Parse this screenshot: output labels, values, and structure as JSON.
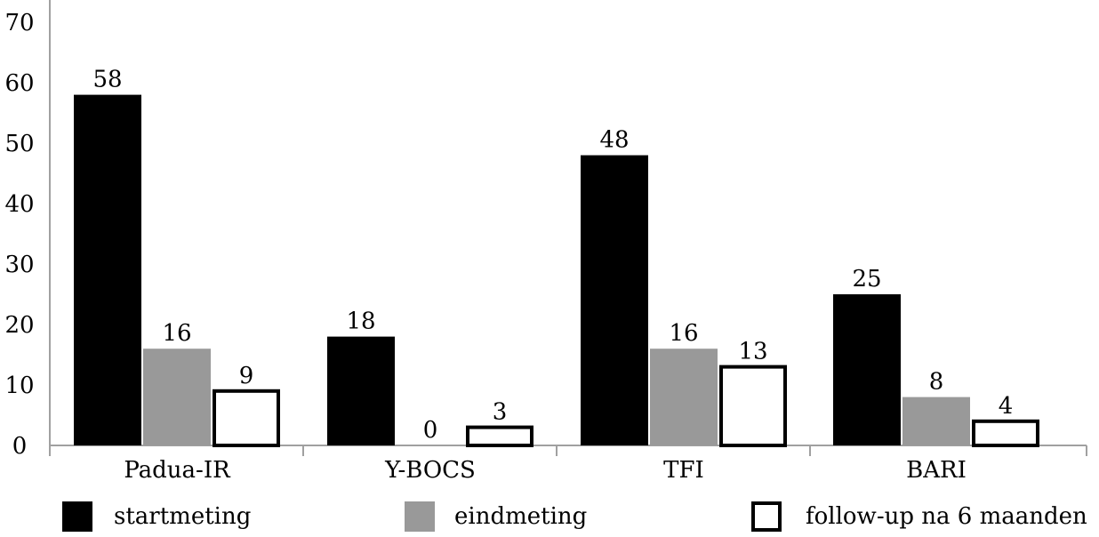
{
  "chart_data": {
    "type": "bar",
    "categories": [
      "Padua-IR",
      "Y-BOCS",
      "TFI",
      "BARI"
    ],
    "series": [
      {
        "name": "startmeting",
        "values": [
          58,
          18,
          48,
          25
        ],
        "labels": [
          "58",
          "18",
          "48",
          "25"
        ],
        "color": "#000000",
        "fill": "solid"
      },
      {
        "name": "eindmeting",
        "values": [
          16,
          0,
          16,
          8
        ],
        "labels": [
          "16",
          "0",
          "16",
          "8"
        ],
        "color": "#999999",
        "fill": "solid"
      },
      {
        "name": "follow-up na 6 maanden",
        "values": [
          9,
          3,
          13,
          4
        ],
        "labels": [
          "9",
          "3",
          "13",
          "4"
        ],
        "color": "#ffffff",
        "fill": "outline"
      }
    ],
    "y_ticks": [
      "0",
      "10",
      "20",
      "30",
      "40",
      "50",
      "60",
      "70"
    ],
    "ylim": [
      0,
      70
    ],
    "grid": false,
    "legend_position": "bottom"
  }
}
